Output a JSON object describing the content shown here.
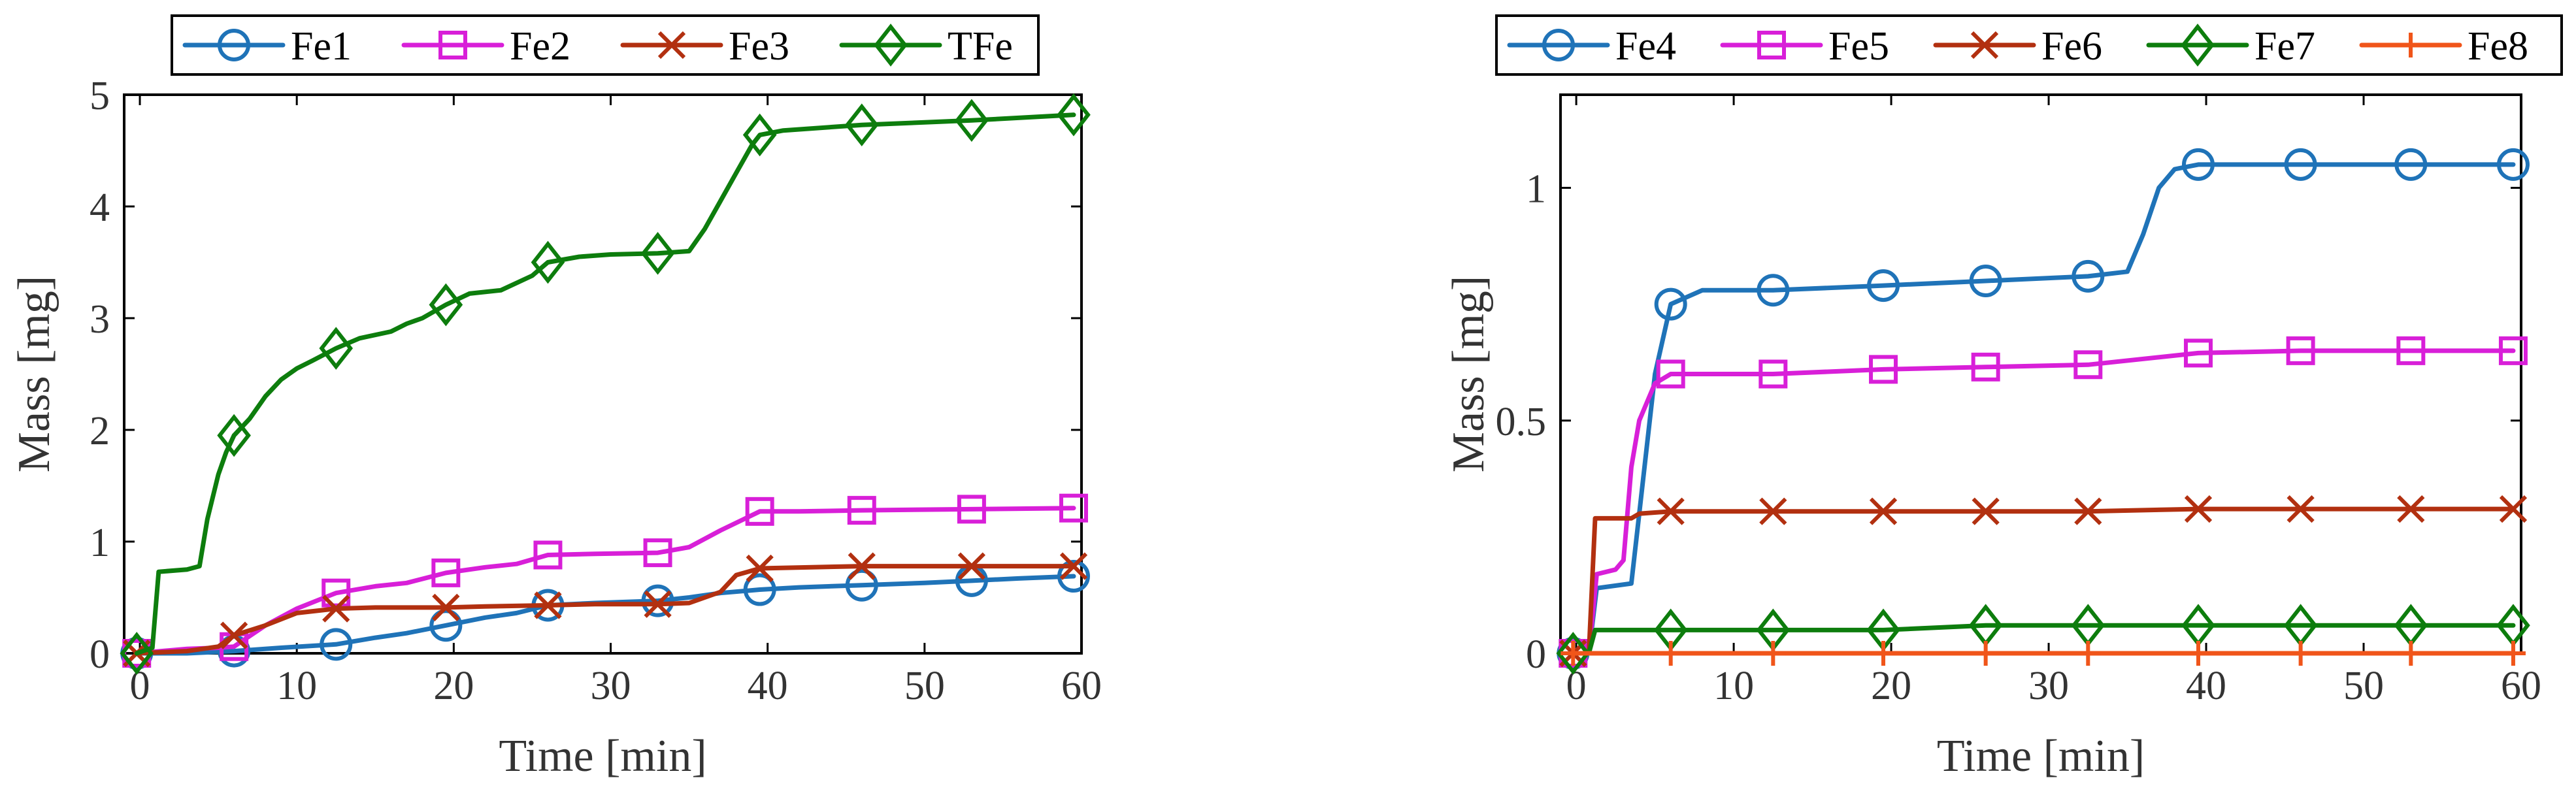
{
  "chart_data": [
    {
      "type": "line",
      "xlabel": "Time [min]",
      "ylabel": "Mass [mg]",
      "xlim": [
        -1,
        60
      ],
      "ylim": [
        0,
        5
      ],
      "xticks": [
        0,
        10,
        20,
        30,
        40,
        50,
        60
      ],
      "yticks": [
        0,
        1,
        2,
        3,
        4,
        5
      ],
      "xtick_labels": [
        "0",
        "10",
        "20",
        "30",
        "40",
        "50",
        "60"
      ],
      "ytick_labels": [
        "0",
        "1",
        "2",
        "3",
        "4",
        "5"
      ],
      "legend": "top",
      "series": [
        {
          "name": "Fe1",
          "color": "#1f73b8",
          "marker": "circle",
          "x": [
            -0.2,
            3,
            6,
            9,
            12.5,
            15,
            17,
            19.5,
            22,
            24,
            26,
            29,
            33,
            35,
            37,
            39.5,
            42,
            46,
            50,
            53,
            56,
            59.5
          ],
          "y": [
            0,
            0.0,
            0.02,
            0.05,
            0.08,
            0.14,
            0.18,
            0.25,
            0.32,
            0.36,
            0.43,
            0.45,
            0.47,
            0.5,
            0.54,
            0.57,
            0.59,
            0.61,
            0.63,
            0.65,
            0.67,
            0.69
          ],
          "marker_x": [
            -0.2,
            6,
            12.5,
            19.5,
            26,
            33,
            39.5,
            46,
            53,
            59.5
          ],
          "marker_y": [
            0,
            0.02,
            0.08,
            0.25,
            0.43,
            0.47,
            0.57,
            0.61,
            0.65,
            0.69
          ]
        },
        {
          "name": "Fe2",
          "color": "#d81fd8",
          "marker": "square",
          "x": [
            -0.2,
            3,
            5,
            6,
            8,
            10,
            12.5,
            15,
            17,
            19.5,
            22,
            24,
            26,
            29,
            33,
            35,
            37,
            39.5,
            42,
            46,
            53,
            59.5
          ],
          "y": [
            0,
            0.04,
            0.05,
            0.06,
            0.25,
            0.4,
            0.54,
            0.6,
            0.63,
            0.72,
            0.77,
            0.8,
            0.88,
            0.89,
            0.9,
            0.95,
            1.1,
            1.27,
            1.27,
            1.28,
            1.29,
            1.3
          ],
          "marker_x": [
            -0.2,
            6,
            12.5,
            19.5,
            26,
            33,
            39.5,
            46,
            53,
            59.5
          ],
          "marker_y": [
            0,
            0.06,
            0.54,
            0.72,
            0.88,
            0.9,
            1.27,
            1.28,
            1.29,
            1.3
          ]
        },
        {
          "name": "Fe3",
          "color": "#b23010",
          "marker": "x",
          "x": [
            -0.2,
            3,
            5,
            6,
            8,
            10,
            12.5,
            15,
            19.5,
            22,
            26,
            29,
            33,
            35,
            37,
            38,
            39.5,
            46,
            53,
            59.5
          ],
          "y": [
            0,
            0.02,
            0.06,
            0.16,
            0.25,
            0.36,
            0.4,
            0.41,
            0.41,
            0.42,
            0.43,
            0.44,
            0.44,
            0.45,
            0.55,
            0.7,
            0.76,
            0.78,
            0.78,
            0.78
          ],
          "marker_x": [
            -0.2,
            6,
            12.5,
            19.5,
            26,
            33,
            39.5,
            46,
            53,
            59.5
          ],
          "marker_y": [
            0,
            0.16,
            0.4,
            0.41,
            0.43,
            0.44,
            0.76,
            0.78,
            0.78,
            0.78
          ]
        },
        {
          "name": "TFe",
          "color": "#0d7d0d",
          "marker": "diamond",
          "x": [
            -0.2,
            0.8,
            1.2,
            3,
            3.8,
            4.3,
            5,
            5.5,
            6,
            7,
            8,
            9,
            10,
            11,
            12.5,
            14,
            16,
            17,
            18,
            19.5,
            21,
            23,
            25,
            26,
            28,
            30,
            33,
            35,
            36,
            37,
            38,
            39,
            39.5,
            41,
            46,
            53,
            59.5
          ],
          "y": [
            0,
            0.05,
            0.73,
            0.75,
            0.78,
            1.2,
            1.6,
            1.8,
            1.95,
            2.1,
            2.3,
            2.45,
            2.55,
            2.62,
            2.73,
            2.82,
            2.88,
            2.95,
            3.0,
            3.12,
            3.22,
            3.25,
            3.38,
            3.5,
            3.55,
            3.57,
            3.58,
            3.6,
            3.8,
            4.05,
            4.3,
            4.55,
            4.64,
            4.68,
            4.73,
            4.77,
            4.82
          ],
          "marker_x": [
            -0.2,
            6,
            12.5,
            19.5,
            26,
            33,
            39.5,
            46,
            53,
            59.5
          ],
          "marker_y": [
            0,
            1.95,
            2.73,
            3.12,
            3.5,
            3.58,
            4.64,
            4.73,
            4.77,
            4.82
          ]
        }
      ]
    },
    {
      "type": "line",
      "xlabel": "Time [min]",
      "ylabel": "Mass [mg]",
      "xlim": [
        -1,
        60
      ],
      "ylim": [
        0,
        1.2
      ],
      "xticks": [
        0,
        10,
        20,
        30,
        40,
        50,
        60
      ],
      "yticks": [
        0,
        0.5,
        1
      ],
      "xtick_labels": [
        "0",
        "10",
        "20",
        "30",
        "40",
        "50",
        "60"
      ],
      "ytick_labels": [
        "0",
        "0.5",
        "1"
      ],
      "legend": "top",
      "series": [
        {
          "name": "Fe4",
          "color": "#1f73b8",
          "marker": "circle",
          "x": [
            -0.2,
            0.8,
            1.3,
            3.5,
            4,
            5,
            6,
            8,
            12.5,
            19.5,
            26,
            32.5,
            35,
            36,
            37,
            38,
            39.5,
            46,
            53,
            59.5
          ],
          "y": [
            0,
            0.0,
            0.14,
            0.15,
            0.3,
            0.6,
            0.75,
            0.78,
            0.78,
            0.79,
            0.8,
            0.81,
            0.82,
            0.9,
            1.0,
            1.04,
            1.05,
            1.05,
            1.05,
            1.05
          ],
          "marker_x": [
            -0.2,
            6,
            12.5,
            19.5,
            26,
            32.5,
            39.5,
            46,
            53,
            59.5
          ],
          "marker_y": [
            0,
            0.75,
            0.78,
            0.79,
            0.8,
            0.81,
            1.05,
            1.05,
            1.05,
            1.05
          ]
        },
        {
          "name": "Fe5",
          "color": "#d81fd8",
          "marker": "square",
          "x": [
            -0.2,
            0.8,
            1.3,
            2.5,
            3,
            3.5,
            4,
            5,
            6,
            12.5,
            19.5,
            26,
            32.5,
            39.5,
            46,
            53,
            59.5
          ],
          "y": [
            0,
            0.0,
            0.17,
            0.18,
            0.2,
            0.4,
            0.5,
            0.58,
            0.6,
            0.6,
            0.61,
            0.615,
            0.62,
            0.645,
            0.65,
            0.65,
            0.65
          ],
          "marker_x": [
            -0.2,
            6,
            12.5,
            19.5,
            26,
            32.5,
            39.5,
            46,
            53,
            59.5
          ],
          "marker_y": [
            0,
            0.6,
            0.6,
            0.61,
            0.615,
            0.62,
            0.645,
            0.65,
            0.65,
            0.65
          ]
        },
        {
          "name": "Fe6",
          "color": "#b23010",
          "marker": "x",
          "x": [
            -0.2,
            0.8,
            1.2,
            3.5,
            4,
            6,
            12.5,
            19.5,
            26,
            32.5,
            39.5,
            46,
            53,
            59.5
          ],
          "y": [
            0,
            0.0,
            0.29,
            0.29,
            0.3,
            0.305,
            0.305,
            0.305,
            0.305,
            0.305,
            0.31,
            0.31,
            0.31,
            0.31
          ],
          "marker_x": [
            -0.2,
            6,
            12.5,
            19.5,
            26,
            32.5,
            39.5,
            46,
            53,
            59.5
          ],
          "marker_y": [
            0,
            0.305,
            0.305,
            0.305,
            0.305,
            0.305,
            0.31,
            0.31,
            0.31,
            0.31
          ]
        },
        {
          "name": "Fe7",
          "color": "#0d7d0d",
          "marker": "diamond",
          "x": [
            -0.2,
            0.8,
            1.2,
            6,
            12.5,
            19.5,
            26,
            32.5,
            39.5,
            46,
            53,
            59.5
          ],
          "y": [
            0,
            0.0,
            0.05,
            0.05,
            0.05,
            0.05,
            0.06,
            0.06,
            0.06,
            0.06,
            0.06,
            0.06
          ],
          "marker_x": [
            -0.2,
            6,
            12.5,
            19.5,
            26,
            32.5,
            39.5,
            46,
            53,
            59.5
          ],
          "marker_y": [
            0,
            0.05,
            0.05,
            0.05,
            0.06,
            0.06,
            0.06,
            0.06,
            0.06,
            0.06
          ]
        },
        {
          "name": "Fe8",
          "color": "#f0551a",
          "marker": "plus",
          "x": [
            -0.2,
            59.5
          ],
          "y": [
            0,
            0
          ],
          "marker_x": [
            -0.2,
            6,
            12.5,
            19.5,
            26,
            32.5,
            39.5,
            46,
            53,
            59.5
          ],
          "marker_y": [
            0,
            0,
            0,
            0,
            0,
            0,
            0,
            0,
            0,
            0
          ]
        }
      ]
    }
  ]
}
